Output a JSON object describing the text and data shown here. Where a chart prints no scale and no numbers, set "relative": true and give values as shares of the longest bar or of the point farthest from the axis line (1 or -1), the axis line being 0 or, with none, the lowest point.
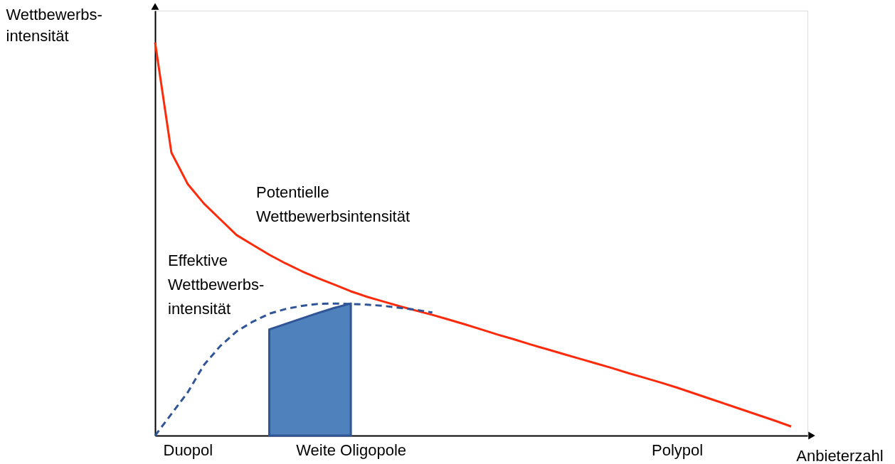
{
  "chart_data": {
    "type": "line",
    "relative": true,
    "xlabel": "Anbieterzahl",
    "ylabel": "Wettbewerbs-\nintensität",
    "categories": [
      null,
      null,
      "Duopol",
      null,
      null,
      null,
      null,
      null,
      null,
      null,
      null,
      null,
      "Weite Oligopole",
      null,
      null,
      null,
      null,
      null,
      null,
      null,
      null,
      null,
      null,
      null,
      null,
      null,
      null,
      null,
      null,
      null,
      null,
      null,
      "Polypol",
      null,
      null,
      null,
      null,
      null,
      null,
      null,
      null
    ],
    "grid": false,
    "marker": "none",
    "series": [
      {
        "name": "Potentielle\nWettbewerbsintensität",
        "color": "#ff2a0a",
        "line_style": "solid",
        "values": [
          1,
          0.72,
          0.64,
          0.59,
          0.55,
          0.51,
          0.485,
          0.46,
          0.438,
          0.418,
          0.4,
          0.384,
          0.367,
          0.353,
          0.341,
          0.329,
          0.318,
          0.307,
          0.295,
          0.283,
          0.27,
          0.257,
          0.245,
          0.232,
          0.22,
          0.208,
          0.196,
          0.184,
          0.172,
          0.159,
          0.147,
          0.135,
          0.122,
          0.108,
          0.094,
          0.08,
          0.066,
          0.052,
          0.038,
          0.023,
          null
        ]
      },
      {
        "name": "Effektive\nWettbewerbs-\nintensität",
        "color": "#2f5597",
        "type": "line",
        "line_style": "dashed",
        "values": [
          0,
          0.055,
          0.11,
          0.18,
          0.228,
          0.265,
          0.29,
          0.31,
          0.322,
          0.33,
          0.335,
          0.336,
          0.335,
          0.333,
          0.33,
          0.325,
          0.32,
          0.313,
          null,
          null,
          null,
          null,
          null,
          null,
          null,
          null,
          null,
          null,
          null,
          null,
          null,
          null,
          null,
          null,
          null,
          null,
          null,
          null,
          null,
          null,
          null
        ]
      },
      {
        "color": "#4f81bd",
        "type": "area",
        "values": [
          null,
          null,
          null,
          null,
          null,
          null,
          null,
          0.27,
          0.284,
          0.298,
          0.312,
          0.325,
          0.336,
          null,
          null,
          null,
          null,
          null,
          null,
          null,
          null,
          null,
          null,
          null,
          null,
          null,
          null,
          null,
          null,
          null,
          null,
          null,
          null,
          null,
          null,
          null,
          null,
          null,
          null,
          null,
          null
        ]
      }
    ]
  }
}
